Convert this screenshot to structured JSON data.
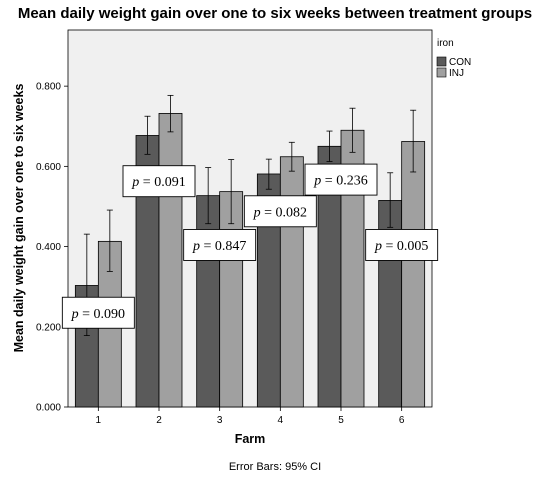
{
  "chart_data": {
    "type": "bar",
    "title": "Mean daily weight gain over one to six weeks between treatment groups",
    "xlabel": "Farm",
    "ylabel": "Mean daily weight gain over one to six weeks",
    "categories": [
      "1",
      "2",
      "3",
      "4",
      "5",
      "6"
    ],
    "ylim": [
      0,
      0.94
    ],
    "yticks": [
      "0.000",
      "0.200",
      "0.400",
      "0.600",
      "0.800"
    ],
    "ytick_values": [
      0,
      0.2,
      0.4,
      0.6,
      0.8
    ],
    "legend": {
      "title": "iron",
      "placement": "right"
    },
    "series": [
      {
        "name": "CON",
        "color": "#5a5a5a",
        "values": [
          0.303,
          0.677,
          0.527,
          0.581,
          0.65,
          0.515
        ],
        "ci_low": [
          0.178,
          0.63,
          0.457,
          0.543,
          0.612,
          0.448
        ],
        "ci_high": [
          0.431,
          0.725,
          0.597,
          0.618,
          0.688,
          0.584
        ]
      },
      {
        "name": "INJ",
        "color": "#a0a0a0",
        "values": [
          0.413,
          0.732,
          0.537,
          0.624,
          0.69,
          0.662
        ],
        "ci_low": [
          0.338,
          0.686,
          0.457,
          0.588,
          0.635,
          0.586
        ],
        "ci_high": [
          0.491,
          0.777,
          0.617,
          0.66,
          0.745,
          0.74
        ]
      }
    ],
    "annotations": [
      {
        "text": "p = 0.090",
        "italic_prefix": "p",
        "rest": " = 0.090",
        "category": "1",
        "y": 0.235
      },
      {
        "text": "p = 0.091",
        "italic_prefix": "p",
        "rest": " = 0.091",
        "category": "2",
        "y": 0.563
      },
      {
        "text": "p = 0.847",
        "italic_prefix": "p",
        "rest": " = 0.847",
        "category": "3",
        "y": 0.404
      },
      {
        "text": "p = 0.082",
        "italic_prefix": "p",
        "rest": " = 0.082",
        "category": "4",
        "y": 0.488
      },
      {
        "text": "p = 0.236",
        "italic_prefix": "p",
        "rest": " = 0.236",
        "category": "5",
        "y": 0.567
      },
      {
        "text": "p = 0.005",
        "italic_prefix": "p",
        "rest": " = 0.005",
        "category": "6",
        "y": 0.404
      }
    ],
    "caption": "Error Bars: 95% CI",
    "grid": false
  }
}
